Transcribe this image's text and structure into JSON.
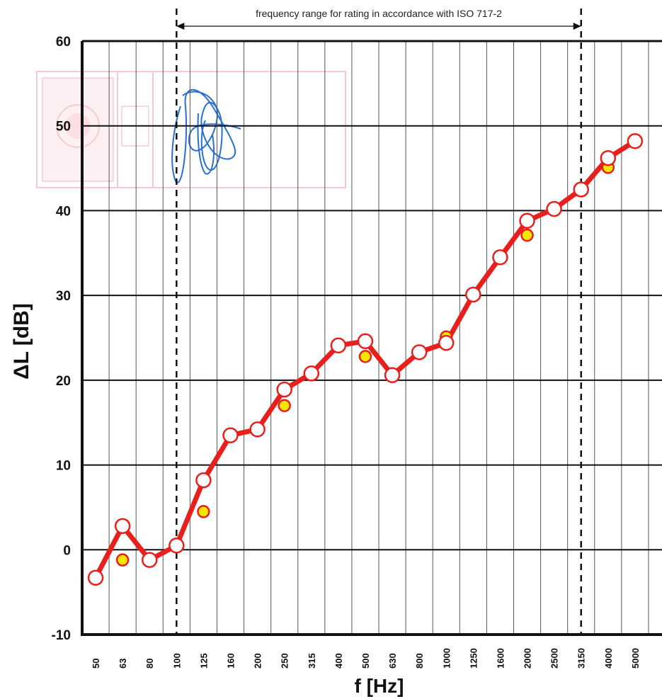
{
  "chart_data": {
    "type": "line",
    "title": "",
    "xlabel": "f [Hz]",
    "ylabel": "ΔL [dB]",
    "ylim": [
      -10,
      60
    ],
    "y_ticks": [
      -10,
      0,
      10,
      20,
      30,
      40,
      50,
      60
    ],
    "grid": true,
    "categories": [
      "50",
      "63",
      "80",
      "100",
      "125",
      "160",
      "200",
      "250",
      "315",
      "400",
      "500",
      "630",
      "800",
      "1000",
      "1250",
      "1600",
      "2000",
      "2500",
      "3150",
      "4000",
      "5000"
    ],
    "series": [
      {
        "name": "",
        "style": "line-open-markers",
        "values": [
          -3.3,
          2.8,
          -1.2,
          0.5,
          8.2,
          13.5,
          14.2,
          18.9,
          20.8,
          24.1,
          24.6,
          20.6,
          23.3,
          24.4,
          30.1,
          34.5,
          38.8,
          40.2,
          42.5,
          46.2,
          48.2
        ]
      },
      {
        "name": "",
        "style": "filled-markers",
        "values": [
          null,
          -1.2,
          null,
          null,
          4.5,
          null,
          null,
          17.0,
          null,
          null,
          22.8,
          null,
          null,
          25.1,
          null,
          null,
          37.1,
          null,
          null,
          45.1,
          null
        ]
      }
    ],
    "annotations": [
      {
        "text": "frequency range for rating in accordance with ISO 717-2",
        "range": [
          "100",
          "3150"
        ]
      }
    ],
    "colors": {
      "line": "#e8201d",
      "marker_fill": "#ffffff",
      "secondary_fill": "#f5e600",
      "grid": "#111111",
      "dashed": "#111111"
    }
  }
}
